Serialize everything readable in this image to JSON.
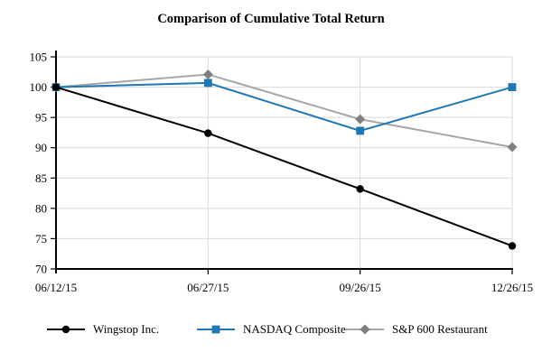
{
  "chart_data": {
    "type": "line",
    "title": "Comparison of Cumulative Total Return",
    "categories": [
      "06/12/15",
      "06/27/15",
      "09/26/15",
      "12/26/15"
    ],
    "series": [
      {
        "id": "wingstop",
        "name": "Wingstop Inc.",
        "marker": "circle",
        "color": "#000000",
        "values": [
          100,
          92.4,
          83.2,
          73.8
        ]
      },
      {
        "id": "nasdaq",
        "name": "NASDAQ Composite",
        "marker": "square",
        "color": "#1F77B4",
        "values": [
          100,
          100.7,
          92.8,
          100.0
        ]
      },
      {
        "id": "sp600",
        "name": "S&P 600 Restaurant",
        "marker": "diamond",
        "color": "#A6A6A6",
        "marker_color": "#7F7F7F",
        "values": [
          100,
          102.1,
          94.7,
          90.1
        ]
      }
    ],
    "xlabel": "",
    "ylabel": "",
    "ylim": [
      70,
      105
    ],
    "ytick_step": 5,
    "grid": true,
    "legend_position": "bottom",
    "colors": {
      "axis": "#000000",
      "grid": "#D9D9D9",
      "text": "#000000",
      "background": "#FFFFFF"
    }
  }
}
